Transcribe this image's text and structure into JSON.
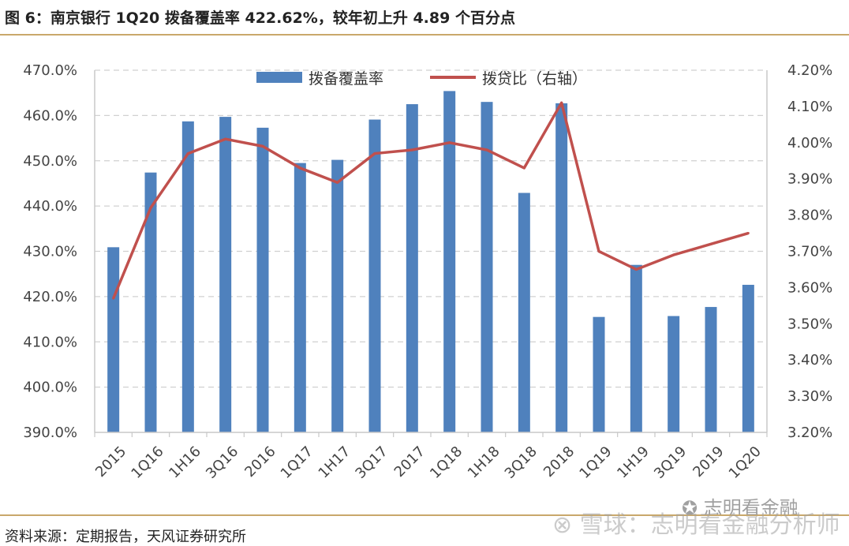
{
  "header": {
    "title": "图 6：南京银行 1Q20 拨备覆盖率 422.62%，较年初上升 4.89 个百分点"
  },
  "footer": {
    "source": "资料来源：定期报告，天风证券研究所",
    "watermark_main": "雪球：志明看金融分析师",
    "watermark_account": "志明看金融"
  },
  "chart_data": {
    "type": "bar",
    "categories": [
      "2015",
      "1Q16",
      "1H16",
      "3Q16",
      "2016",
      "1Q17",
      "1H17",
      "3Q17",
      "2017",
      "1Q18",
      "1H18",
      "3Q18",
      "2018",
      "1Q19",
      "1H19",
      "3Q19",
      "2019",
      "1Q20"
    ],
    "series": [
      {
        "name": "拨备覆盖率",
        "type": "bar",
        "axis": "left",
        "color": "#4f81bd",
        "values": [
          430.9,
          447.4,
          458.7,
          459.7,
          457.3,
          449.5,
          450.2,
          459.1,
          462.5,
          465.4,
          463.0,
          442.9,
          462.7,
          415.5,
          427.0,
          415.7,
          417.7,
          422.6
        ]
      },
      {
        "name": "拨贷比（右轴）",
        "type": "line",
        "axis": "right",
        "color": "#c0504d",
        "values": [
          3.57,
          3.82,
          3.97,
          4.01,
          3.99,
          3.93,
          3.89,
          3.97,
          3.98,
          4.0,
          3.98,
          3.93,
          4.11,
          3.7,
          3.65,
          3.69,
          3.72,
          3.75
        ]
      }
    ],
    "y_left": {
      "min": 390,
      "max": 470,
      "step": 10,
      "tick_labels": [
        "390.0%",
        "400.0%",
        "410.0%",
        "420.0%",
        "430.0%",
        "440.0%",
        "450.0%",
        "460.0%",
        "470.0%"
      ]
    },
    "y_right": {
      "min": 3.2,
      "max": 4.2,
      "step": 0.1,
      "tick_labels": [
        "3.20%",
        "3.30%",
        "3.40%",
        "3.50%",
        "3.60%",
        "3.70%",
        "3.80%",
        "3.90%",
        "4.00%",
        "4.10%",
        "4.20%"
      ]
    },
    "grid": "horizontal dashed",
    "legend": "top-center"
  }
}
